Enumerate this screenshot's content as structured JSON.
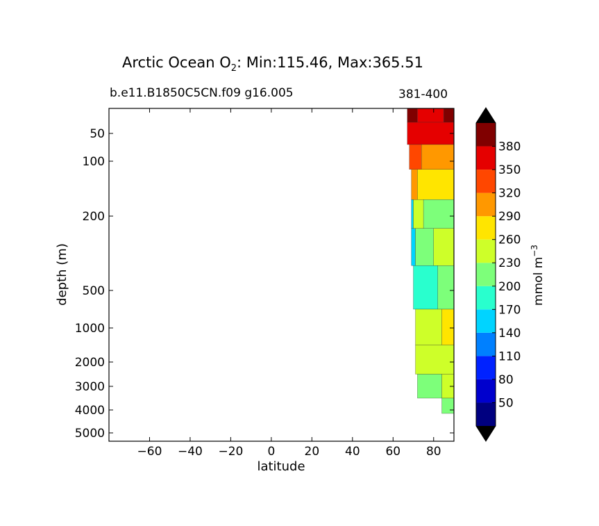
{
  "chart_data": {
    "type": "heatmap",
    "title": {
      "prefix": "Arctic Ocean O",
      "subscript": "2",
      "suffix": ": Min:115.46, Max:365.51"
    },
    "subtitle_left": "b.e11.B1850C5CN.f09 g16.005",
    "subtitle_right": "381-400",
    "xlabel": "latitude",
    "ylabel": "depth (m)",
    "xlim": [
      -80,
      90
    ],
    "x_ticks": [
      -60,
      -40,
      -20,
      0,
      20,
      40,
      60,
      80
    ],
    "x_tick_labels": [
      "−60",
      "−40",
      "−20",
      "0",
      "20",
      "40",
      "60",
      "80"
    ],
    "y_scale": "piecewise-log (inverted)",
    "y_ticks": [
      50,
      100,
      200,
      500,
      1000,
      2000,
      3000,
      4000,
      5000
    ],
    "y_tick_labels": [
      "50",
      "100",
      "200",
      "500",
      "1000",
      "2000",
      "3000",
      "4000",
      "5000"
    ],
    "colorbar": {
      "label_main": "mmol m",
      "label_exp": "−3",
      "extend": "both",
      "levels": [
        20,
        50,
        80,
        110,
        140,
        170,
        200,
        230,
        260,
        290,
        320,
        350,
        380,
        410
      ],
      "tick_labels": [
        "50",
        "80",
        "110",
        "140",
        "170",
        "200",
        "230",
        "260",
        "290",
        "320",
        "350",
        "380"
      ],
      "colors": [
        "#000080",
        "#0000cd",
        "#0022ff",
        "#0080ff",
        "#00d4ff",
        "#29ffce",
        "#7dff7a",
        "#ceff29",
        "#ffe500",
        "#ff9800",
        "#ff4700",
        "#e50000",
        "#800000"
      ],
      "under_color": "#000000",
      "over_color": "#000000"
    },
    "depth_rows": [
      {
        "depth": 10,
        "bands": [
          [
            67,
            380
          ],
          [
            72,
            350
          ],
          [
            85,
            380
          ]
        ]
      },
      {
        "depth": 50,
        "bands": [
          [
            67,
            350
          ]
        ]
      },
      {
        "depth": 90,
        "bands": [
          [
            68,
            320
          ],
          [
            74,
            290
          ]
        ]
      },
      {
        "depth": 140,
        "bands": [
          [
            69,
            290
          ],
          [
            72,
            260
          ]
        ]
      },
      {
        "depth": 200,
        "bands": [
          [
            69,
            140
          ],
          [
            70,
            230
          ],
          [
            75,
            200
          ]
        ]
      },
      {
        "depth": 300,
        "bands": [
          [
            69,
            140
          ],
          [
            71,
            200
          ],
          [
            80,
            230
          ]
        ]
      },
      {
        "depth": 500,
        "bands": [
          [
            70,
            170
          ],
          [
            82,
            200
          ]
        ]
      },
      {
        "depth": 1000,
        "bands": [
          [
            71,
            230
          ],
          [
            84,
            260
          ]
        ]
      },
      {
        "depth": 2000,
        "bands": [
          [
            71,
            230
          ]
        ]
      },
      {
        "depth": 3000,
        "bands": [
          [
            72,
            200
          ],
          [
            84,
            230
          ]
        ]
      },
      {
        "depth": 4000,
        "bands": [
          [
            84,
            200
          ]
        ]
      }
    ]
  }
}
